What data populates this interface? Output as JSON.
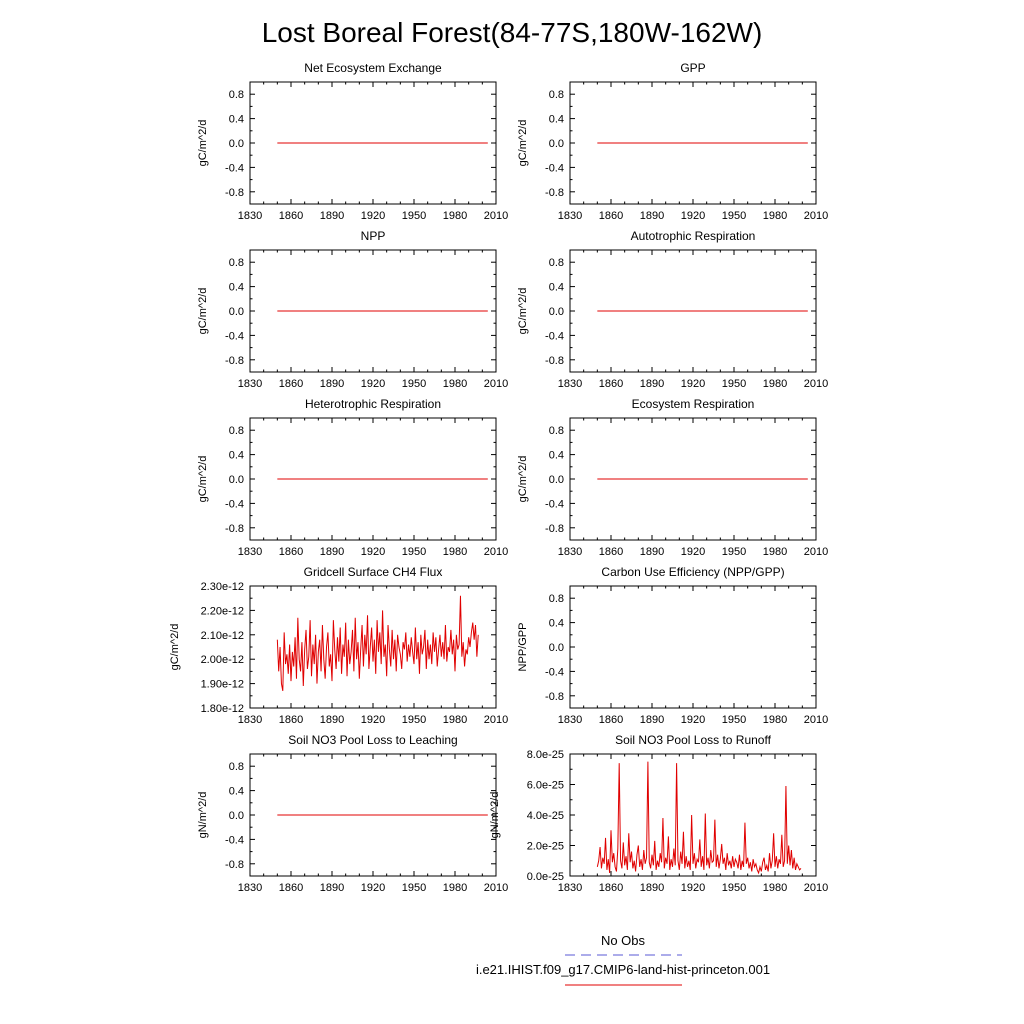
{
  "figure": {
    "title": "Lost Boreal Forest(84-77S,180W-162W)"
  },
  "legend": {
    "obs_label": "No Obs",
    "model_label": "i.e21.IHIST.f09_g17.CMIP6-land-hist-princeton.001",
    "obs_color": "#5a5ad6",
    "model_color": "#e00000"
  },
  "chart_data": [
    {
      "type": "line",
      "title": "Net Ecosystem Exchange",
      "ylabel": "gC/m^2/d",
      "xlim": [
        1830,
        2010
      ],
      "x_ticks": [
        "1830",
        "1860",
        "1890",
        "1920",
        "1950",
        "1980",
        "2010"
      ],
      "ylim": [
        -1.0,
        1.0
      ],
      "y_ticks": [
        "0.8",
        "0.4",
        "0.0",
        "-0.4",
        "-0.8"
      ],
      "y_tick_values": [
        0.8,
        0.4,
        0.0,
        -0.4,
        -0.8
      ],
      "series": [
        {
          "x": [
            1850,
            2004
          ],
          "y": [
            0.0,
            0.0
          ]
        }
      ]
    },
    {
      "type": "line",
      "title": "GPP",
      "ylabel": "gC/m^2/d",
      "xlim": [
        1830,
        2010
      ],
      "x_ticks": [
        "1830",
        "1860",
        "1890",
        "1920",
        "1950",
        "1980",
        "2010"
      ],
      "ylim": [
        -1.0,
        1.0
      ],
      "y_ticks": [
        "0.8",
        "0.4",
        "0.0",
        "-0.4",
        "-0.8"
      ],
      "y_tick_values": [
        0.8,
        0.4,
        0.0,
        -0.4,
        -0.8
      ],
      "series": [
        {
          "x": [
            1850,
            2004
          ],
          "y": [
            0.0,
            0.0
          ]
        }
      ]
    },
    {
      "type": "line",
      "title": "NPP",
      "ylabel": "gC/m^2/d",
      "xlim": [
        1830,
        2010
      ],
      "x_ticks": [
        "1830",
        "1860",
        "1890",
        "1920",
        "1950",
        "1980",
        "2010"
      ],
      "ylim": [
        -1.0,
        1.0
      ],
      "y_ticks": [
        "0.8",
        "0.4",
        "0.0",
        "-0.4",
        "-0.8"
      ],
      "y_tick_values": [
        0.8,
        0.4,
        0.0,
        -0.4,
        -0.8
      ],
      "series": [
        {
          "x": [
            1850,
            2004
          ],
          "y": [
            0.0,
            0.0
          ]
        }
      ]
    },
    {
      "type": "line",
      "title": "Autotrophic Respiration",
      "ylabel": "gC/m^2/d",
      "xlim": [
        1830,
        2010
      ],
      "x_ticks": [
        "1830",
        "1860",
        "1890",
        "1920",
        "1950",
        "1980",
        "2010"
      ],
      "ylim": [
        -1.0,
        1.0
      ],
      "y_ticks": [
        "0.8",
        "0.4",
        "0.0",
        "-0.4",
        "-0.8"
      ],
      "y_tick_values": [
        0.8,
        0.4,
        0.0,
        -0.4,
        -0.8
      ],
      "series": [
        {
          "x": [
            1850,
            2004
          ],
          "y": [
            0.0,
            0.0
          ]
        }
      ]
    },
    {
      "type": "line",
      "title": "Heterotrophic Respiration",
      "ylabel": "gC/m^2/d",
      "xlim": [
        1830,
        2010
      ],
      "x_ticks": [
        "1830",
        "1860",
        "1890",
        "1920",
        "1950",
        "1980",
        "2010"
      ],
      "ylim": [
        -1.0,
        1.0
      ],
      "y_ticks": [
        "0.8",
        "0.4",
        "0.0",
        "-0.4",
        "-0.8"
      ],
      "y_tick_values": [
        0.8,
        0.4,
        0.0,
        -0.4,
        -0.8
      ],
      "series": [
        {
          "x": [
            1850,
            2004
          ],
          "y": [
            0.0,
            0.0
          ]
        }
      ]
    },
    {
      "type": "line",
      "title": "Ecosystem Respiration",
      "ylabel": "gC/m^2/d",
      "xlim": [
        1830,
        2010
      ],
      "x_ticks": [
        "1830",
        "1860",
        "1890",
        "1920",
        "1950",
        "1980",
        "2010"
      ],
      "ylim": [
        -1.0,
        1.0
      ],
      "y_ticks": [
        "0.8",
        "0.4",
        "0.0",
        "-0.4",
        "-0.8"
      ],
      "y_tick_values": [
        0.8,
        0.4,
        0.0,
        -0.4,
        -0.8
      ],
      "series": [
        {
          "x": [
            1850,
            2004
          ],
          "y": [
            0.0,
            0.0
          ]
        }
      ]
    },
    {
      "type": "line",
      "title": "Gridcell Surface CH4 Flux",
      "ylabel": "gC/m^2/d",
      "xlim": [
        1830,
        2010
      ],
      "x_ticks": [
        "1830",
        "1860",
        "1890",
        "1920",
        "1950",
        "1980",
        "2010"
      ],
      "ylim": [
        1.8e-12,
        2.3e-12
      ],
      "y_ticks": [
        "2.30e-12",
        "2.20e-12",
        "2.10e-12",
        "2.00e-12",
        "1.90e-12",
        "1.80e-12"
      ],
      "y_tick_values": [
        2.3e-12,
        2.2e-12,
        2.1e-12,
        2e-12,
        1.9e-12,
        1.8e-12
      ],
      "series": [
        {
          "x_start": 1850,
          "x_step": 1,
          "y": [
            2.08e-12,
            1.95e-12,
            2.05e-12,
            1.9e-12,
            1.87e-12,
            2.11e-12,
            1.98e-12,
            2.02e-12,
            1.94e-12,
            2.06e-12,
            1.91e-12,
            2.03e-12,
            1.97e-12,
            2.09e-12,
            1.92e-12,
            2.17e-12,
            2e-12,
            1.95e-12,
            2.07e-12,
            1.89e-12,
            2.04e-12,
            2.12e-12,
            1.96e-12,
            2.01e-12,
            2.16e-12,
            1.93e-12,
            2.06e-12,
            1.98e-12,
            2.1e-12,
            1.9e-12,
            2.03e-12,
            2.08e-12,
            1.95e-12,
            2.14e-12,
            2e-12,
            1.92e-12,
            2.05e-12,
            2.11e-12,
            1.97e-12,
            2.02e-12,
            1.91e-12,
            2.16e-12,
            2.04e-12,
            1.96e-12,
            2.09e-12,
            1.99e-12,
            2.13e-12,
            1.94e-12,
            2.06e-12,
            2.01e-12,
            2.15e-12,
            1.93e-12,
            2.08e-12,
            1.98e-12,
            2.03e-12,
            2.12e-12,
            1.95e-12,
            2.17e-12,
            2e-12,
            2.07e-12,
            1.92e-12,
            2.04e-12,
            2.14e-12,
            1.97e-12,
            2.1e-12,
            2.02e-12,
            2.18e-12,
            1.96e-12,
            2.05e-12,
            2.13e-12,
            1.99e-12,
            2.08e-12,
            1.94e-12,
            2.16e-12,
            2.03e-12,
            2.11e-12,
            1.98e-12,
            2.2e-12,
            2.01e-12,
            2.06e-12,
            1.93e-12,
            2.14e-12,
            2.04e-12,
            1.97e-12,
            2.12e-12,
            2e-12,
            2.08e-12,
            1.95e-12,
            2.1e-12,
            2.05e-12,
            2.02e-12,
            1.96e-12,
            2.07e-12,
            2.04e-12,
            2.11e-12,
            1.99e-12,
            2.06e-12,
            2.01e-12,
            2.09e-12,
            2.03e-12,
            1.98e-12,
            2.13e-12,
            2e-12,
            2.07e-12,
            1.94e-12,
            2.1e-12,
            2.02e-12,
            2.05e-12,
            2.12e-12,
            1.96e-12,
            2.08e-12,
            2e-12,
            2.06e-12,
            1.98e-12,
            2.11e-12,
            2.03e-12,
            2.09e-12,
            1.97e-12,
            2.04e-12,
            2.1e-12,
            2.01e-12,
            2.07e-12,
            2e-12,
            2.14e-12,
            1.99e-12,
            2.05e-12,
            2.03e-12,
            2.12e-12,
            2.02e-12,
            2.08e-12,
            1.95e-12,
            2.1e-12,
            2.04e-12,
            2.06e-12,
            2.26e-12,
            2.01e-12,
            2.07e-12,
            1.97e-12,
            2.04e-12,
            2.02e-12,
            2.09e-12,
            2.05e-12,
            2.11e-12,
            2.15e-12,
            2.08e-12,
            2.14e-12,
            2.01e-12,
            2.1e-12
          ]
        }
      ]
    },
    {
      "type": "line",
      "title": "Carbon Use Efficiency (NPP/GPP)",
      "ylabel": "NPP/GPP",
      "xlim": [
        1830,
        2010
      ],
      "x_ticks": [
        "1830",
        "1860",
        "1890",
        "1920",
        "1950",
        "1980",
        "2010"
      ],
      "ylim": [
        -1.0,
        1.0
      ],
      "y_ticks": [
        "0.8",
        "0.4",
        "0.0",
        "-0.4",
        "-0.8"
      ],
      "y_tick_values": [
        0.8,
        0.4,
        0.0,
        -0.4,
        -0.8
      ],
      "series": []
    },
    {
      "type": "line",
      "title": "Soil NO3 Pool Loss to Leaching",
      "ylabel": "gN/m^2/d",
      "xlim": [
        1830,
        2010
      ],
      "x_ticks": [
        "1830",
        "1860",
        "1890",
        "1920",
        "1950",
        "1980",
        "2010"
      ],
      "ylim": [
        -1.0,
        1.0
      ],
      "y_ticks": [
        "0.8",
        "0.4",
        "0.0",
        "-0.4",
        "-0.8"
      ],
      "y_tick_values": [
        0.8,
        0.4,
        0.0,
        -0.4,
        -0.8
      ],
      "series": [
        {
          "x": [
            1850,
            2004
          ],
          "y": [
            0.0,
            0.0
          ]
        }
      ]
    },
    {
      "type": "line",
      "title": "Soil NO3 Pool Loss to Runoff",
      "ylabel": "gN/m^2/d",
      "xlim": [
        1830,
        2010
      ],
      "x_ticks": [
        "1830",
        "1860",
        "1890",
        "1920",
        "1950",
        "1980",
        "2010"
      ],
      "ylim": [
        0.0,
        8e-25
      ],
      "y_ticks": [
        "8.0e-25",
        "6.0e-25",
        "4.0e-25",
        "2.0e-25",
        "0.0e-25"
      ],
      "y_tick_values": [
        8e-25,
        6e-25,
        4e-25,
        2e-25,
        0.0
      ],
      "series": [
        {
          "x_start": 1850,
          "x_step": 1,
          "y": [
            6e-26,
            1e-25,
            1.9e-25,
            5e-26,
            1.2e-25,
            8e-26,
            2.5e-25,
            4e-26,
            1.1e-25,
            2e-26,
            3e-25,
            9e-26,
            1.5e-25,
            6e-26,
            3e-26,
            1.8e-25,
            7.4e-25,
            1e-25,
            5e-26,
            2.2e-25,
            7e-26,
            1.3e-25,
            4e-26,
            2.8e-25,
            9e-26,
            1.6e-25,
            5e-26,
            1e-25,
            3e-26,
            1.4e-25,
            2e-25,
            6e-26,
            1.1e-25,
            4e-26,
            1.7e-25,
            8e-26,
            1.2e-25,
            7.5e-25,
            9e-26,
            5e-26,
            1.4e-25,
            7e-26,
            2.3e-25,
            4e-26,
            1e-25,
            6e-26,
            1.5e-25,
            9e-26,
            3.8e-25,
            5e-26,
            1.2e-25,
            8e-26,
            2.6e-25,
            4e-26,
            1.1e-25,
            6e-26,
            1.8e-25,
            7e-26,
            7.4e-25,
            1e-25,
            4e-26,
            1.6e-25,
            8e-26,
            2.9e-25,
            5e-26,
            1.3e-25,
            6e-26,
            1e-25,
            4e-26,
            4e-25,
            8e-26,
            1.5e-25,
            5e-26,
            1.1e-25,
            9e-26,
            2.4e-25,
            6e-26,
            1.3e-25,
            4e-26,
            4.1e-25,
            7e-26,
            1.2e-25,
            5e-26,
            1.7e-25,
            9e-26,
            1e-25,
            3.7e-25,
            6e-26,
            1.4e-25,
            5e-26,
            1.1e-25,
            2.1e-25,
            8e-26,
            1.2e-25,
            4e-26,
            1.5e-25,
            7e-26,
            1e-25,
            5e-26,
            1.3e-25,
            6e-26,
            1.1e-25,
            9e-26,
            5e-26,
            1.4e-25,
            4e-26,
            1e-25,
            6e-26,
            3.5e-25,
            8e-26,
            1.2e-25,
            5e-26,
            9e-26,
            3e-26,
            1.1e-25,
            6e-26,
            8e-26,
            4e-26,
            2e-26,
            6e-26,
            3e-26,
            9e-26,
            1.2e-25,
            4e-26,
            7e-26,
            3e-26,
            1.5e-25,
            5e-26,
            1e-25,
            2.8e-25,
            6e-26,
            1.3e-25,
            5e-26,
            1.1e-25,
            8e-26,
            2.7e-25,
            6e-26,
            1e-25,
            5.9e-25,
            8e-26,
            2e-25,
            7e-26,
            1.7e-25,
            5e-26,
            1.2e-25,
            4e-26,
            8e-26,
            6e-26,
            4e-26,
            5e-26
          ]
        }
      ]
    }
  ]
}
